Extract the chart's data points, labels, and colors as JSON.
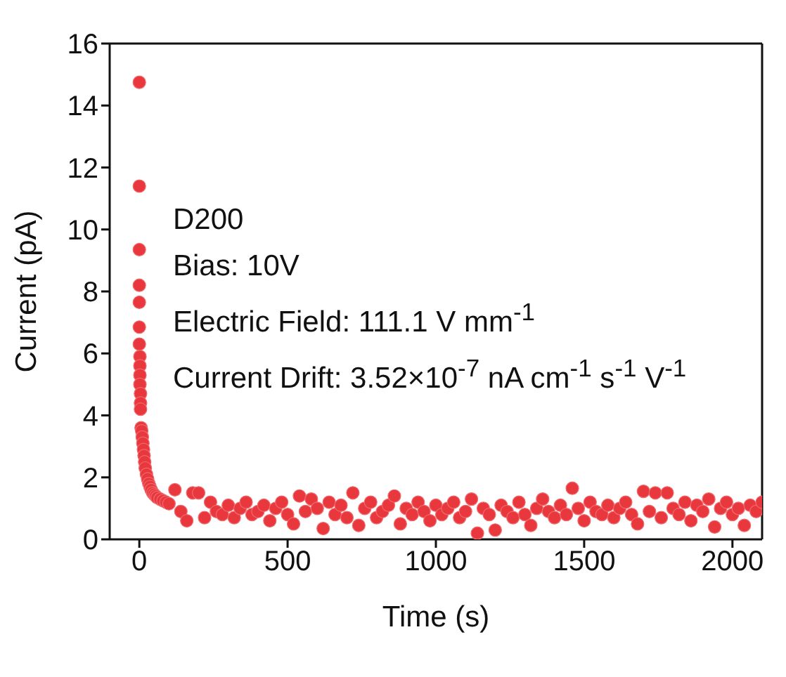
{
  "chart_data": {
    "type": "scatter",
    "xlabel": "Time (s)",
    "ylabel": "Current (pA)",
    "annotations": [
      "D200",
      "Bias: 10V",
      "Electric Field: 111.1 V mm$^{-1}$",
      "Current Drift: 3.52×10$^{-7}$ nA cm$^{-1}$ s$^{-1}$ V$^{-1}$"
    ],
    "xlim": [
      -100,
      2100
    ],
    "xticks": [
      0,
      500,
      1000,
      1500,
      2000
    ],
    "ylim": [
      0,
      16
    ],
    "yticks": [
      0,
      2,
      4,
      6,
      8,
      10,
      12,
      14,
      16
    ],
    "marker": "circle",
    "series": [
      {
        "color": "#e8383d",
        "x": [
          0,
          0,
          0,
          0,
          0,
          0,
          0,
          2,
          2,
          2,
          2,
          4,
          4,
          4,
          6,
          8,
          10,
          12,
          14,
          16,
          18,
          20,
          24,
          28,
          32,
          36,
          40,
          45,
          50,
          55,
          60,
          70,
          80,
          90,
          100,
          120,
          140,
          160,
          180,
          200,
          220,
          240,
          260,
          280,
          300,
          320,
          340,
          360,
          380,
          400,
          420,
          440,
          460,
          480,
          500,
          520,
          540,
          560,
          580,
          600,
          620,
          640,
          660,
          680,
          700,
          720,
          740,
          760,
          780,
          800,
          820,
          840,
          860,
          880,
          900,
          920,
          940,
          960,
          980,
          1000,
          1020,
          1040,
          1060,
          1080,
          1100,
          1120,
          1140,
          1160,
          1180,
          1200,
          1220,
          1240,
          1260,
          1280,
          1300,
          1320,
          1340,
          1360,
          1380,
          1400,
          1420,
          1440,
          1460,
          1480,
          1500,
          1520,
          1540,
          1560,
          1580,
          1600,
          1620,
          1640,
          1660,
          1680,
          1700,
          1720,
          1740,
          1760,
          1780,
          1800,
          1820,
          1840,
          1860,
          1880,
          1900,
          1920,
          1940,
          1960,
          1980,
          2000,
          2020,
          2040,
          2060,
          2080,
          2100
        ],
        "values": [
          14.75,
          11.4,
          9.35,
          8.2,
          7.65,
          6.85,
          6.3,
          5.9,
          5.6,
          5.3,
          5.0,
          4.7,
          4.4,
          4.2,
          3.6,
          3.5,
          3.3,
          3.1,
          2.9,
          2.7,
          2.5,
          2.3,
          2.1,
          1.95,
          1.8,
          1.7,
          1.6,
          1.5,
          1.45,
          1.4,
          1.35,
          1.3,
          1.25,
          1.2,
          1.15,
          1.6,
          0.9,
          0.6,
          1.5,
          1.5,
          0.7,
          1.2,
          0.9,
          0.8,
          1.1,
          0.7,
          1.0,
          1.2,
          0.8,
          0.9,
          1.1,
          0.6,
          1.0,
          1.2,
          0.8,
          0.5,
          1.4,
          0.9,
          1.3,
          1.0,
          0.35,
          1.2,
          0.8,
          1.1,
          0.7,
          1.5,
          0.45,
          1.0,
          1.2,
          0.7,
          0.9,
          1.1,
          1.4,
          0.5,
          1.0,
          0.8,
          1.2,
          0.9,
          0.6,
          1.1,
          0.8,
          1.0,
          1.2,
          0.7,
          0.9,
          1.3,
          0.2,
          1.0,
          0.8,
          0.3,
          1.1,
          0.9,
          0.7,
          1.2,
          0.8,
          0.45,
          1.0,
          1.3,
          0.9,
          0.7,
          1.1,
          0.8,
          1.65,
          1.0,
          0.6,
          1.2,
          0.9,
          0.8,
          1.1,
          0.7,
          1.0,
          1.2,
          0.8,
          0.5,
          1.55,
          0.9,
          1.5,
          0.7,
          1.5,
          1.0,
          0.8,
          1.2,
          0.6,
          1.1,
          0.9,
          1.3,
          0.4,
          1.0,
          1.2,
          0.8,
          1.0,
          0.45,
          1.1,
          0.9,
          1.2
        ]
      }
    ]
  }
}
